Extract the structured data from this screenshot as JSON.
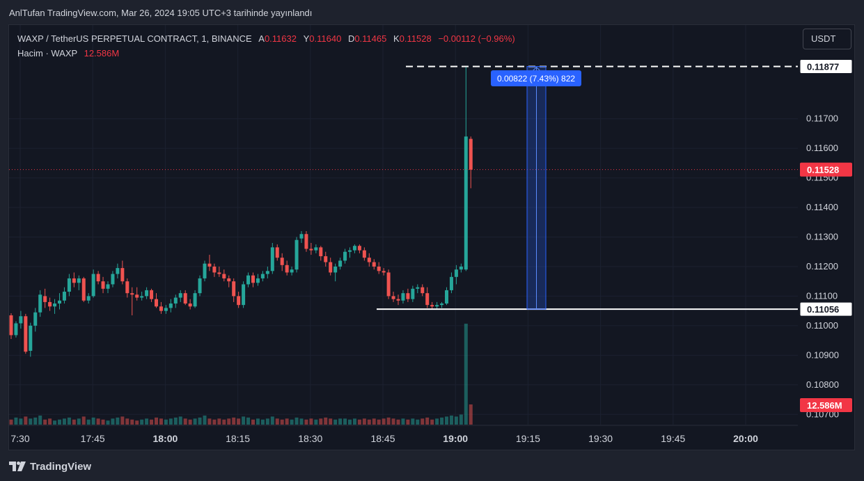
{
  "publish_header": "AnlTufan TradingView.com, Mar 26, 2024 19:05 UTC+3 tarihinde yayınlandı",
  "legend": {
    "symbol": "WAXP / TetherUS PERPETUAL CONTRACT, 1, BINANCE",
    "open_key": "A",
    "open": "0.11632",
    "high_key": "Y",
    "high": "0.11640",
    "low_key": "D",
    "low": "0.11465",
    "close_key": "K",
    "close": "0.11528",
    "change": "−0.00112 (−0.96%)",
    "volume_label": "Hacim · WAXP",
    "volume_value": "12.586M"
  },
  "currency_button": "USDT",
  "footer": {
    "brand": "TradingView",
    "logo_icon": "tradingview-logo-icon"
  },
  "colors": {
    "up": "#26a69a",
    "down": "#ef5350",
    "measure": "#2962ff",
    "badge_red": "#f23645",
    "background": "#131722"
  },
  "chart_data": {
    "type": "candlestick",
    "interval_minutes": 1,
    "grid": true,
    "ylim": [
      0.1067,
      0.1197
    ],
    "y_ticks": [
      "0.11700",
      "0.11600",
      "0.11500",
      "0.11400",
      "0.11300",
      "0.11200",
      "0.11100",
      "0.11000",
      "0.10900",
      "0.10800",
      "0.10700"
    ],
    "x_ticks": [
      {
        "label": "7:30",
        "bold": false
      },
      {
        "label": "17:45",
        "bold": false
      },
      {
        "label": "18:00",
        "bold": true
      },
      {
        "label": "18:15",
        "bold": false
      },
      {
        "label": "18:30",
        "bold": false
      },
      {
        "label": "18:45",
        "bold": false
      },
      {
        "label": "19:00",
        "bold": true
      },
      {
        "label": "19:15",
        "bold": false
      },
      {
        "label": "19:30",
        "bold": false
      },
      {
        "label": "19:45",
        "bold": false
      },
      {
        "label": "20:00",
        "bold": true
      }
    ],
    "price_labels": {
      "current": "0.11528",
      "high_line": "0.11877",
      "low_line": "0.11056",
      "volume": "12.586M"
    },
    "measure_label": "0.00822 (7.43%) 822",
    "measure_low": 0.11056,
    "measure_high": 0.11877,
    "ohlc": [
      [
        0.11035,
        0.11042,
        0.10955,
        0.10968
      ],
      [
        0.10968,
        0.11015,
        0.1096,
        0.11008
      ],
      [
        0.11008,
        0.1105,
        0.1099,
        0.11032
      ],
      [
        0.11032,
        0.1104,
        0.10905,
        0.10912
      ],
      [
        0.10915,
        0.1101,
        0.10895,
        0.11
      ],
      [
        0.11,
        0.1106,
        0.1098,
        0.11045
      ],
      [
        0.11045,
        0.1112,
        0.1103,
        0.11105
      ],
      [
        0.111,
        0.11125,
        0.1106,
        0.1108
      ],
      [
        0.1108,
        0.11095,
        0.1105,
        0.11065
      ],
      [
        0.11065,
        0.1109,
        0.1104,
        0.11075
      ],
      [
        0.11075,
        0.1111,
        0.11055,
        0.11085
      ],
      [
        0.11085,
        0.1113,
        0.11075,
        0.11115
      ],
      [
        0.11115,
        0.11175,
        0.111,
        0.1116
      ],
      [
        0.1116,
        0.1118,
        0.1113,
        0.11145
      ],
      [
        0.11145,
        0.1117,
        0.1112,
        0.1116
      ],
      [
        0.1116,
        0.11165,
        0.1108,
        0.11085
      ],
      [
        0.11085,
        0.1111,
        0.11075,
        0.111
      ],
      [
        0.111,
        0.1119,
        0.11095,
        0.11175
      ],
      [
        0.11175,
        0.11185,
        0.1114,
        0.1115
      ],
      [
        0.1115,
        0.11165,
        0.1111,
        0.11125
      ],
      [
        0.11125,
        0.1115,
        0.1111,
        0.1114
      ],
      [
        0.1114,
        0.11185,
        0.1113,
        0.11175
      ],
      [
        0.11175,
        0.1121,
        0.1116,
        0.11195
      ],
      [
        0.11195,
        0.1122,
        0.1114,
        0.1115
      ],
      [
        0.1115,
        0.1116,
        0.11095,
        0.1111
      ],
      [
        0.1111,
        0.1113,
        0.11035,
        0.11105
      ],
      [
        0.11105,
        0.1113,
        0.11085,
        0.11095
      ],
      [
        0.11095,
        0.11115,
        0.11085,
        0.111
      ],
      [
        0.111,
        0.1113,
        0.1109,
        0.1112
      ],
      [
        0.1112,
        0.11125,
        0.1108,
        0.1109
      ],
      [
        0.1109,
        0.1111,
        0.1106,
        0.11065
      ],
      [
        0.11065,
        0.1108,
        0.1104,
        0.1105
      ],
      [
        0.1105,
        0.1107,
        0.1104,
        0.1106
      ],
      [
        0.1106,
        0.1109,
        0.11045,
        0.11075
      ],
      [
        0.11075,
        0.11105,
        0.1106,
        0.11095
      ],
      [
        0.11095,
        0.1112,
        0.1108,
        0.1111
      ],
      [
        0.1111,
        0.1112,
        0.1107,
        0.11075
      ],
      [
        0.11075,
        0.1109,
        0.11055,
        0.11065
      ],
      [
        0.11065,
        0.1112,
        0.1106,
        0.1111
      ],
      [
        0.1111,
        0.1117,
        0.111,
        0.1116
      ],
      [
        0.1116,
        0.1122,
        0.1115,
        0.1121
      ],
      [
        0.1121,
        0.1124,
        0.11185,
        0.112
      ],
      [
        0.112,
        0.1121,
        0.11165,
        0.1118
      ],
      [
        0.1118,
        0.112,
        0.11165,
        0.11175
      ],
      [
        0.11175,
        0.1119,
        0.1115,
        0.1116
      ],
      [
        0.1116,
        0.1117,
        0.1113,
        0.1115
      ],
      [
        0.1115,
        0.1116,
        0.1108,
        0.111
      ],
      [
        0.111,
        0.11115,
        0.1106,
        0.1107
      ],
      [
        0.1107,
        0.1115,
        0.1106,
        0.1114
      ],
      [
        0.1114,
        0.1118,
        0.1113,
        0.1117
      ],
      [
        0.1117,
        0.1118,
        0.1113,
        0.11145
      ],
      [
        0.11145,
        0.11175,
        0.11135,
        0.1116
      ],
      [
        0.1116,
        0.11185,
        0.1115,
        0.11175
      ],
      [
        0.11175,
        0.112,
        0.1116,
        0.11185
      ],
      [
        0.11185,
        0.1128,
        0.11175,
        0.11265
      ],
      [
        0.11265,
        0.11275,
        0.1122,
        0.1123
      ],
      [
        0.1123,
        0.11245,
        0.11185,
        0.11205
      ],
      [
        0.11205,
        0.1122,
        0.1117,
        0.1118
      ],
      [
        0.1118,
        0.112,
        0.1117,
        0.1119
      ],
      [
        0.1119,
        0.113,
        0.1118,
        0.1129
      ],
      [
        0.11295,
        0.1132,
        0.1128,
        0.1131
      ],
      [
        0.1131,
        0.1132,
        0.1125,
        0.1126
      ],
      [
        0.1126,
        0.1128,
        0.1124,
        0.11255
      ],
      [
        0.11255,
        0.11275,
        0.11245,
        0.11265
      ],
      [
        0.11265,
        0.1127,
        0.1122,
        0.11235
      ],
      [
        0.11235,
        0.1125,
        0.112,
        0.11215
      ],
      [
        0.11215,
        0.1123,
        0.1117,
        0.1118
      ],
      [
        0.1118,
        0.1121,
        0.1115,
        0.112
      ],
      [
        0.112,
        0.1123,
        0.1119,
        0.1122
      ],
      [
        0.1122,
        0.1126,
        0.1121,
        0.1125
      ],
      [
        0.1125,
        0.11265,
        0.1123,
        0.11255
      ],
      [
        0.11255,
        0.11275,
        0.11245,
        0.1127
      ],
      [
        0.1127,
        0.11275,
        0.11245,
        0.11255
      ],
      [
        0.11255,
        0.11265,
        0.1122,
        0.1123
      ],
      [
        0.1123,
        0.11245,
        0.112,
        0.11215
      ],
      [
        0.11215,
        0.11225,
        0.1119,
        0.112
      ],
      [
        0.112,
        0.11215,
        0.11175,
        0.11185
      ],
      [
        0.11185,
        0.11195,
        0.1117,
        0.1118
      ],
      [
        0.1118,
        0.1119,
        0.1109,
        0.111
      ],
      [
        0.111,
        0.11115,
        0.1108,
        0.1109
      ],
      [
        0.1109,
        0.11105,
        0.1107,
        0.11085
      ],
      [
        0.11085,
        0.1112,
        0.11075,
        0.1111
      ],
      [
        0.1111,
        0.11125,
        0.1108,
        0.1109
      ],
      [
        0.1109,
        0.11135,
        0.1108,
        0.11125
      ],
      [
        0.11125,
        0.1114,
        0.1111,
        0.1113
      ],
      [
        0.1113,
        0.1114,
        0.111,
        0.1111
      ],
      [
        0.1111,
        0.1113,
        0.1106,
        0.1107
      ],
      [
        0.1107,
        0.1108,
        0.11055,
        0.11065
      ],
      [
        0.11065,
        0.1108,
        0.11055,
        0.1107
      ],
      [
        0.1107,
        0.1108,
        0.1106,
        0.11075
      ],
      [
        0.11075,
        0.1113,
        0.1107,
        0.1112
      ],
      [
        0.1112,
        0.1118,
        0.1111,
        0.11165
      ],
      [
        0.11165,
        0.11205,
        0.1114,
        0.1119
      ],
      [
        0.1119,
        0.1121,
        0.1118,
        0.112
      ],
      [
        0.1119,
        0.11877,
        0.11185,
        0.1164
      ],
      [
        0.11632,
        0.1164,
        0.11465,
        0.11528
      ]
    ],
    "volume_bars": [
      0.05,
      0.07,
      0.06,
      0.08,
      0.06,
      0.07,
      0.09,
      0.05,
      0.06,
      0.04,
      0.05,
      0.06,
      0.07,
      0.05,
      0.06,
      0.08,
      0.05,
      0.07,
      0.06,
      0.05,
      0.04,
      0.06,
      0.07,
      0.08,
      0.06,
      0.05,
      0.04,
      0.05,
      0.06,
      0.05,
      0.07,
      0.06,
      0.05,
      0.06,
      0.07,
      0.08,
      0.06,
      0.05,
      0.06,
      0.07,
      0.09,
      0.06,
      0.05,
      0.06,
      0.05,
      0.06,
      0.07,
      0.06,
      0.08,
      0.07,
      0.05,
      0.06,
      0.05,
      0.06,
      0.08,
      0.06,
      0.05,
      0.06,
      0.05,
      0.07,
      0.06,
      0.05,
      0.06,
      0.05,
      0.06,
      0.07,
      0.06,
      0.05,
      0.06,
      0.06,
      0.05,
      0.06,
      0.05,
      0.06,
      0.05,
      0.06,
      0.05,
      0.06,
      0.07,
      0.06,
      0.05,
      0.06,
      0.05,
      0.06,
      0.05,
      0.06,
      0.07,
      0.05,
      0.06,
      0.07,
      0.08,
      0.09,
      0.08,
      0.1,
      1.0,
      0.2
    ]
  }
}
